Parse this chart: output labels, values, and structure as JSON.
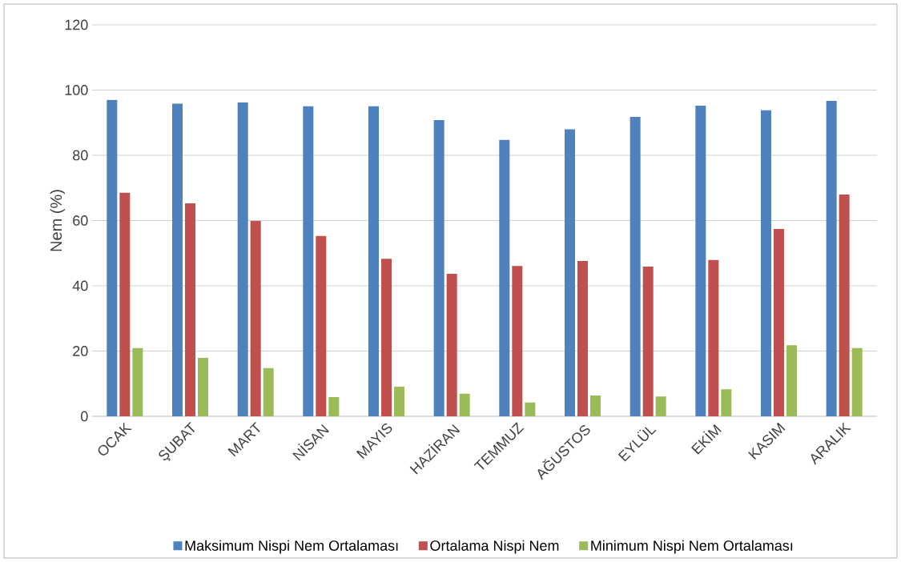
{
  "chart_data": {
    "type": "bar",
    "ylabel": "Nem (%)",
    "categories": [
      "OCAK",
      "ŞUBAT",
      "MART",
      "NİSAN",
      "MAYIS",
      "HAZİRAN",
      "TEMMUZ",
      "AĞUSTOS",
      "EYLÜL",
      "EKİM",
      "KASIM",
      "ARALIK"
    ],
    "series": [
      {
        "name": "Maksimum Nispi Nem Ortalaması",
        "color": "#4f81bd",
        "values": [
          97,
          95.8,
          96.2,
          95,
          95,
          90.8,
          84.7,
          88,
          91.8,
          95.2,
          93.8,
          96.7
        ]
      },
      {
        "name": "Ortalama Nispi Nem",
        "color": "#c0504d",
        "values": [
          68.5,
          65.3,
          59.9,
          55.3,
          48.3,
          43.7,
          46.1,
          47.6,
          45.9,
          47.9,
          57.4,
          68
        ]
      },
      {
        "name": "Minimum Nispi Nem Ortalaması",
        "color": "#9bbb59",
        "values": [
          20.9,
          17.9,
          14.8,
          5.9,
          9.1,
          6.9,
          4.2,
          6.4,
          6.1,
          8.3,
          21.8,
          20.9
        ]
      }
    ],
    "ylim": [
      0,
      120
    ],
    "yticks": [
      0,
      20,
      40,
      60,
      80,
      100,
      120
    ],
    "grid": "y",
    "legend": "bottom"
  }
}
